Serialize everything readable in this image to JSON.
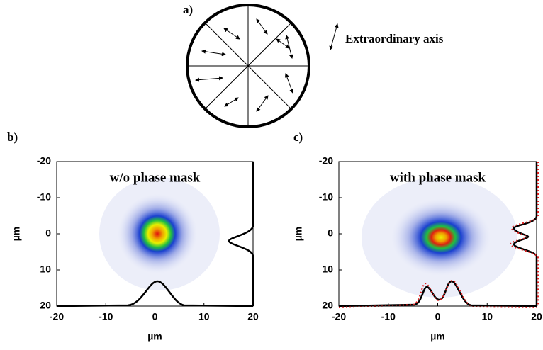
{
  "panel_a": {
    "label": "a)",
    "legend": "Extraordinary axis"
  },
  "chart_data": [
    {
      "type": "heatmap",
      "panel_label": "b)",
      "title": "w/o phase mask",
      "x_label": "µm",
      "y_label": "µm",
      "xlim": [
        -20,
        20
      ],
      "ylim": [
        20,
        -20
      ],
      "xticks": [
        -20,
        -10,
        0,
        10,
        20
      ],
      "yticks": [
        -20,
        -10,
        0,
        10,
        20
      ]
    },
    {
      "type": "heatmap",
      "panel_label": "c)",
      "title": "with phase mask",
      "x_label": "µm",
      "y_label": "µm",
      "xlim": [
        -20,
        20
      ],
      "ylim": [
        20,
        -20
      ],
      "xticks": [
        -20,
        -10,
        0,
        10,
        20
      ],
      "yticks": [
        -20,
        -10,
        0,
        10,
        20
      ]
    }
  ]
}
